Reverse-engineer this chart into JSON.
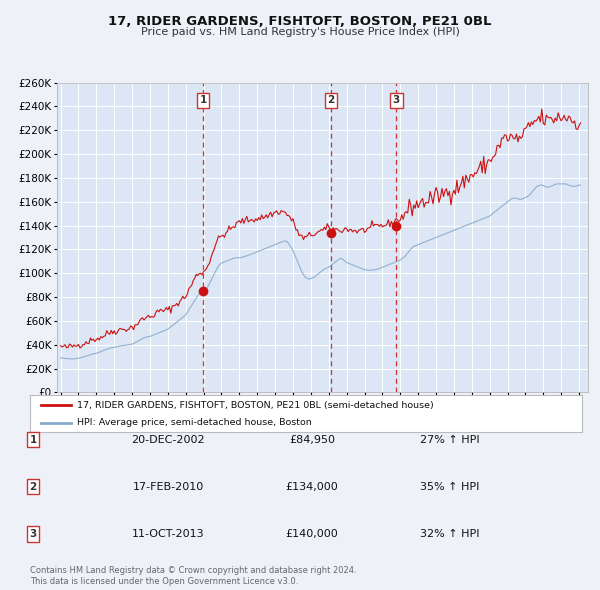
{
  "title": "17, RIDER GARDENS, FISHTOFT, BOSTON, PE21 0BL",
  "subtitle": "Price paid vs. HM Land Registry's House Price Index (HPI)",
  "ylim": [
    0,
    260000
  ],
  "yticks": [
    0,
    20000,
    40000,
    60000,
    80000,
    100000,
    120000,
    140000,
    160000,
    180000,
    200000,
    220000,
    240000,
    260000
  ],
  "background_color": "#eef2f8",
  "plot_bg_color": "#dce6f5",
  "grid_color": "#ffffff",
  "red_line_color": "#cc1111",
  "blue_line_color": "#88aacc",
  "sale_marker_color": "#cc1111",
  "vline_color": "#cc3333",
  "legend_label_red": "17, RIDER GARDENS, FISHTOFT, BOSTON, PE21 0BL (semi-detached house)",
  "legend_label_blue": "HPI: Average price, semi-detached house, Boston",
  "transactions": [
    {
      "num": 1,
      "date": "20-DEC-2002",
      "price": 84950,
      "pct": "27%",
      "year": 2002.97
    },
    {
      "num": 2,
      "date": "17-FEB-2010",
      "price": 134000,
      "pct": "35%",
      "year": 2010.12
    },
    {
      "num": 3,
      "date": "11-OCT-2013",
      "price": 140000,
      "pct": "32%",
      "year": 2013.78
    }
  ],
  "footer_text": "Contains HM Land Registry data © Crown copyright and database right 2024.\nThis data is licensed under the Open Government Licence v3.0.",
  "hpi_data_years": [
    1995.0,
    1995.083,
    1995.167,
    1995.25,
    1995.333,
    1995.417,
    1995.5,
    1995.583,
    1995.667,
    1995.75,
    1995.833,
    1995.917,
    1996.0,
    1996.083,
    1996.167,
    1996.25,
    1996.333,
    1996.417,
    1996.5,
    1996.583,
    1996.667,
    1996.75,
    1996.833,
    1996.917,
    1997.0,
    1997.083,
    1997.167,
    1997.25,
    1997.333,
    1997.417,
    1997.5,
    1997.583,
    1997.667,
    1997.75,
    1997.833,
    1997.917,
    1998.0,
    1998.083,
    1998.167,
    1998.25,
    1998.333,
    1998.417,
    1998.5,
    1998.583,
    1998.667,
    1998.75,
    1998.833,
    1998.917,
    1999.0,
    1999.083,
    1999.167,
    1999.25,
    1999.333,
    1999.417,
    1999.5,
    1999.583,
    1999.667,
    1999.75,
    1999.833,
    1999.917,
    2000.0,
    2000.083,
    2000.167,
    2000.25,
    2000.333,
    2000.417,
    2000.5,
    2000.583,
    2000.667,
    2000.75,
    2000.833,
    2000.917,
    2001.0,
    2001.083,
    2001.167,
    2001.25,
    2001.333,
    2001.417,
    2001.5,
    2001.583,
    2001.667,
    2001.75,
    2001.833,
    2001.917,
    2002.0,
    2002.083,
    2002.167,
    2002.25,
    2002.333,
    2002.417,
    2002.5,
    2002.583,
    2002.667,
    2002.75,
    2002.833,
    2002.917,
    2003.0,
    2003.083,
    2003.167,
    2003.25,
    2003.333,
    2003.417,
    2003.5,
    2003.583,
    2003.667,
    2003.75,
    2003.833,
    2003.917,
    2004.0,
    2004.083,
    2004.167,
    2004.25,
    2004.333,
    2004.417,
    2004.5,
    2004.583,
    2004.667,
    2004.75,
    2004.833,
    2004.917,
    2005.0,
    2005.083,
    2005.167,
    2005.25,
    2005.333,
    2005.417,
    2005.5,
    2005.583,
    2005.667,
    2005.75,
    2005.833,
    2005.917,
    2006.0,
    2006.083,
    2006.167,
    2006.25,
    2006.333,
    2006.417,
    2006.5,
    2006.583,
    2006.667,
    2006.75,
    2006.833,
    2006.917,
    2007.0,
    2007.083,
    2007.167,
    2007.25,
    2007.333,
    2007.417,
    2007.5,
    2007.583,
    2007.667,
    2007.75,
    2007.833,
    2007.917,
    2008.0,
    2008.083,
    2008.167,
    2008.25,
    2008.333,
    2008.417,
    2008.5,
    2008.583,
    2008.667,
    2008.75,
    2008.833,
    2008.917,
    2009.0,
    2009.083,
    2009.167,
    2009.25,
    2009.333,
    2009.417,
    2009.5,
    2009.583,
    2009.667,
    2009.75,
    2009.833,
    2009.917,
    2010.0,
    2010.083,
    2010.167,
    2010.25,
    2010.333,
    2010.417,
    2010.5,
    2010.583,
    2010.667,
    2010.75,
    2010.833,
    2010.917,
    2011.0,
    2011.083,
    2011.167,
    2011.25,
    2011.333,
    2011.417,
    2011.5,
    2011.583,
    2011.667,
    2011.75,
    2011.833,
    2011.917,
    2012.0,
    2012.083,
    2012.167,
    2012.25,
    2012.333,
    2012.417,
    2012.5,
    2012.583,
    2012.667,
    2012.75,
    2012.833,
    2012.917,
    2013.0,
    2013.083,
    2013.167,
    2013.25,
    2013.333,
    2013.417,
    2013.5,
    2013.583,
    2013.667,
    2013.75,
    2013.833,
    2013.917,
    2014.0,
    2014.083,
    2014.167,
    2014.25,
    2014.333,
    2014.417,
    2014.5,
    2014.583,
    2014.667,
    2014.75,
    2014.833,
    2014.917,
    2015.0,
    2015.083,
    2015.167,
    2015.25,
    2015.333,
    2015.417,
    2015.5,
    2015.583,
    2015.667,
    2015.75,
    2015.833,
    2015.917,
    2016.0,
    2016.083,
    2016.167,
    2016.25,
    2016.333,
    2016.417,
    2016.5,
    2016.583,
    2016.667,
    2016.75,
    2016.833,
    2016.917,
    2017.0,
    2017.083,
    2017.167,
    2017.25,
    2017.333,
    2017.417,
    2017.5,
    2017.583,
    2017.667,
    2017.75,
    2017.833,
    2017.917,
    2018.0,
    2018.083,
    2018.167,
    2018.25,
    2018.333,
    2018.417,
    2018.5,
    2018.583,
    2018.667,
    2018.75,
    2018.833,
    2018.917,
    2019.0,
    2019.083,
    2019.167,
    2019.25,
    2019.333,
    2019.417,
    2019.5,
    2019.583,
    2019.667,
    2019.75,
    2019.833,
    2019.917,
    2020.0,
    2020.083,
    2020.167,
    2020.25,
    2020.333,
    2020.417,
    2020.5,
    2020.583,
    2020.667,
    2020.75,
    2020.833,
    2020.917,
    2021.0,
    2021.083,
    2021.167,
    2021.25,
    2021.333,
    2021.417,
    2021.5,
    2021.583,
    2021.667,
    2021.75,
    2021.833,
    2021.917,
    2022.0,
    2022.083,
    2022.167,
    2022.25,
    2022.333,
    2022.417,
    2022.5,
    2022.583,
    2022.667,
    2022.75,
    2022.833,
    2022.917,
    2023.0,
    2023.083,
    2023.167,
    2023.25,
    2023.333,
    2023.417,
    2023.5,
    2023.583,
    2023.667,
    2023.75,
    2023.833,
    2023.917,
    2024.0,
    2024.083
  ],
  "hpi_values": [
    29000,
    28800,
    28600,
    28500,
    28400,
    28300,
    28200,
    28100,
    28000,
    28100,
    28300,
    28500,
    28700,
    29000,
    29300,
    29600,
    30000,
    30400,
    30800,
    31200,
    31600,
    32000,
    32300,
    32500,
    32800,
    33200,
    33700,
    34200,
    34700,
    35200,
    35700,
    36200,
    36600,
    37000,
    37300,
    37600,
    37900,
    38200,
    38500,
    38700,
    38900,
    39100,
    39300,
    39500,
    39700,
    39900,
    40100,
    40300,
    40500,
    41000,
    41700,
    42400,
    43100,
    43800,
    44500,
    45200,
    45800,
    46200,
    46500,
    46700,
    47000,
    47500,
    48000,
    48500,
    49000,
    49500,
    50000,
    50500,
    51000,
    51500,
    52000,
    52500,
    53000,
    54000,
    55000,
    56000,
    57000,
    58000,
    59000,
    60000,
    61000,
    62000,
    63000,
    64000,
    65000,
    67000,
    69000,
    71000,
    73000,
    75000,
    77000,
    79000,
    81000,
    82500,
    83500,
    84000,
    84500,
    85500,
    87000,
    89000,
    91500,
    94000,
    96500,
    99000,
    101500,
    104000,
    106000,
    107500,
    108500,
    109000,
    109500,
    110000,
    110500,
    111000,
    111500,
    112000,
    112500,
    113000,
    113000,
    113000,
    113000,
    113200,
    113500,
    113800,
    114200,
    114600,
    115000,
    115500,
    116000,
    116500,
    117000,
    117500,
    118000,
    118500,
    119000,
    119500,
    120000,
    120500,
    121000,
    121500,
    122000,
    122500,
    123000,
    123500,
    124000,
    124500,
    125000,
    125500,
    126000,
    126500,
    127000,
    127000,
    126500,
    125000,
    123000,
    121000,
    119000,
    116000,
    113000,
    110000,
    107000,
    104000,
    101000,
    99000,
    97000,
    96000,
    95500,
    95000,
    95500,
    96000,
    96500,
    97500,
    98500,
    99500,
    100500,
    101500,
    102500,
    103500,
    104000,
    104500,
    105000,
    106000,
    107000,
    108000,
    109000,
    110000,
    111000,
    112000,
    112500,
    112000,
    111000,
    110000,
    109000,
    108500,
    108000,
    107500,
    107000,
    106500,
    106000,
    105500,
    105000,
    104500,
    104000,
    103500,
    103000,
    102800,
    102600,
    102500,
    102500,
    102600,
    102800,
    103000,
    103200,
    103500,
    104000,
    104500,
    105000,
    105500,
    106000,
    106500,
    107000,
    107500,
    108000,
    108500,
    109000,
    109500,
    110000,
    110500,
    111000,
    112000,
    113000,
    114000,
    115500,
    117000,
    118500,
    120000,
    121500,
    122500,
    123000,
    123500,
    124000,
    124500,
    125000,
    125500,
    126000,
    126500,
    127000,
    127500,
    128000,
    128500,
    129000,
    129500,
    130000,
    130500,
    131000,
    131500,
    132000,
    132500,
    133000,
    133500,
    134000,
    134500,
    135000,
    135500,
    136000,
    136500,
    137000,
    137500,
    138000,
    138500,
    139000,
    139500,
    140000,
    140500,
    141000,
    141500,
    142000,
    142500,
    143000,
    143500,
    144000,
    144500,
    145000,
    145500,
    146000,
    146500,
    147000,
    147500,
    148000,
    149000,
    150000,
    151000,
    152000,
    153000,
    154000,
    155000,
    156000,
    157000,
    158000,
    159000,
    160000,
    161000,
    162000,
    162500,
    163000,
    163000,
    163000,
    162500,
    162000,
    162000,
    162500,
    163000,
    163500,
    164000,
    165000,
    166000,
    167500,
    169000,
    170500,
    172000,
    173000,
    173500,
    174000,
    174000,
    173500,
    173000,
    172500,
    172000,
    172500,
    173000,
    173500,
    174000,
    174500,
    175000,
    175000,
    175000,
    175000,
    175000,
    175000,
    175000,
    174500,
    174000,
    173500,
    173000,
    173000,
    173000,
    173000,
    173500,
    174000,
    174000
  ],
  "prop_values": [
    38500,
    38200,
    37900,
    37700,
    37800,
    38000,
    38200,
    38500,
    38700,
    39000,
    39300,
    39600,
    39900,
    40200,
    40600,
    41000,
    41500,
    42000,
    42500,
    43000,
    43500,
    44000,
    44500,
    44800,
    45000,
    45300,
    45700,
    46200,
    46800,
    47500,
    48300,
    49000,
    49700,
    50300,
    50800,
    51100,
    51400,
    51700,
    52000,
    52300,
    52600,
    52800,
    53000,
    53200,
    53400,
    53600,
    53800,
    54100,
    54500,
    55200,
    56200,
    57200,
    58200,
    59200,
    60200,
    61200,
    62000,
    62600,
    63000,
    63200,
    63500,
    64000,
    64700,
    65500,
    66200,
    67000,
    67700,
    68200,
    68500,
    68700,
    68800,
    68900,
    69200,
    69700,
    70500,
    71500,
    72500,
    73500,
    74500,
    75500,
    76500,
    77500,
    78500,
    79500,
    81000,
    83000,
    85500,
    88000,
    90500,
    93000,
    95500,
    97500,
    99000,
    100000,
    100500,
    100800,
    101000,
    102000,
    104000,
    107000,
    110500,
    114000,
    117500,
    121000,
    124000,
    126500,
    128500,
    130000,
    131000,
    132000,
    133000,
    134000,
    135000,
    136000,
    137000,
    138000,
    139000,
    140000,
    141000,
    142000,
    143000,
    143500,
    143800,
    144000,
    144200,
    144400,
    144600,
    144800,
    145000,
    145200,
    145400,
    145600,
    145800,
    146000,
    146300,
    146600,
    147000,
    147400,
    147800,
    148300,
    148800,
    149300,
    149800,
    150300,
    150800,
    151200,
    151500,
    151600,
    151700,
    151600,
    151200,
    150500,
    149500,
    148200,
    146700,
    145000,
    143000,
    140500,
    138000,
    135500,
    133000,
    131000,
    130000,
    129500,
    129500,
    130000,
    130800,
    131500,
    132000,
    132500,
    133000,
    133500,
    134000,
    134500,
    135000,
    135500,
    136000,
    136500,
    137000,
    137500,
    138000,
    138000,
    137800,
    137500,
    137000,
    136500,
    136000,
    135800,
    136000,
    136500,
    136800,
    137000,
    137000,
    136800,
    136500,
    136200,
    136000,
    135800,
    135600,
    135500,
    135500,
    135600,
    135800,
    136000,
    136300,
    136600,
    137000,
    137400,
    137800,
    138300,
    138800,
    139200,
    139500,
    139700,
    139800,
    139900,
    140000,
    140200,
    140500,
    140900,
    141400,
    141900,
    142400,
    143000,
    143600,
    144200,
    144700,
    145100,
    145500,
    146500,
    148000,
    149800,
    151500,
    153000,
    154000,
    155000,
    155800,
    156500,
    157000,
    157500,
    158000,
    158500,
    159000,
    159500,
    160000,
    160500,
    161000,
    161500,
    162000,
    162500,
    163000,
    163500,
    164000,
    164600,
    165200,
    165800,
    166400,
    167000,
    167500,
    168000,
    168500,
    169000,
    169500,
    170000,
    170500,
    171000,
    172000,
    173000,
    174000,
    175000,
    176000,
    177000,
    178000,
    179000,
    180000,
    181000,
    182000,
    183000,
    184000,
    185000,
    186000,
    187000,
    188000,
    189000,
    190000,
    191000,
    192000,
    193000,
    194000,
    196000,
    198000,
    200000,
    202000,
    204000,
    206000,
    208000,
    210000,
    212000,
    213000,
    213500,
    214000,
    214000,
    214000,
    213500,
    213000,
    212500,
    212000,
    212500,
    213000,
    214000,
    215500,
    217000,
    218500,
    220000,
    221500,
    223000,
    224500,
    226000,
    227000,
    228000,
    229000,
    229500,
    230000,
    230000,
    229500,
    229000,
    228500,
    228000,
    228000,
    228500,
    229000,
    229500,
    230000,
    230500,
    231000,
    231000,
    231000,
    231000,
    231000,
    231000,
    231000,
    231000,
    230000,
    229000,
    228000,
    227000,
    226500,
    226000,
    226500,
    227000
  ]
}
